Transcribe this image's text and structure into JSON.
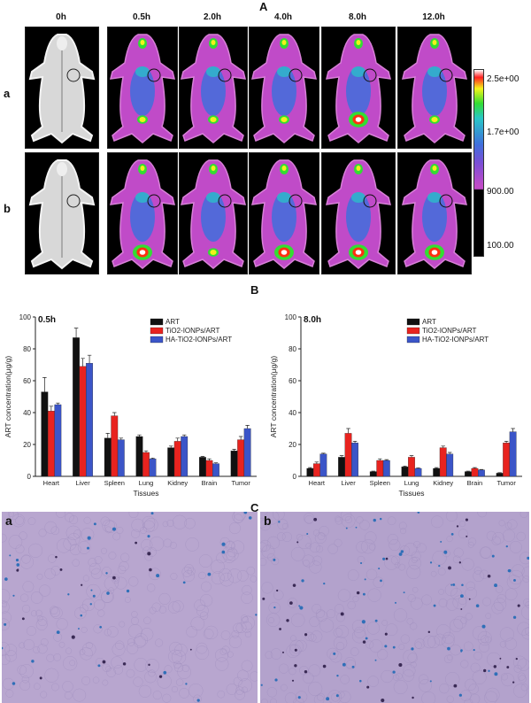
{
  "panelA": {
    "letter": "A",
    "timepoints": [
      "0h",
      "0.5h",
      "2.0h",
      "4.0h",
      "8.0h",
      "12.0h"
    ],
    "rows": [
      "a",
      "b"
    ],
    "colorbar": {
      "labels": [
        "2.5e+00",
        "1.7e+00",
        "900.00",
        "100.00"
      ]
    },
    "colors": {
      "low": "#c04bc8",
      "mid": "#3f6fdc",
      "high": "#f2f21a",
      "hot": "#ff3010"
    }
  },
  "panelB": {
    "letter": "B"
  },
  "panelC": {
    "letter": "C",
    "labels": [
      "a",
      "b"
    ]
  },
  "chart_data": [
    {
      "type": "bar",
      "title": "0.5h",
      "xlabel": "Tissues",
      "ylabel": "ART concentration(μg/g)",
      "ylim": [
        0,
        100
      ],
      "yticks": [
        0,
        20,
        40,
        60,
        80,
        100
      ],
      "legend": "top-right",
      "categories": [
        "Heart",
        "Liver",
        "Spleen",
        "Lung",
        "Kidney",
        "Brain",
        "Tumor"
      ],
      "series": [
        {
          "name": "ART",
          "color": "#111111",
          "values": [
            53,
            87,
            24,
            25,
            18,
            12,
            16
          ],
          "errors": [
            9,
            6,
            3,
            1,
            1,
            0.5,
            1
          ]
        },
        {
          "name": "TiO2-IONPs/ART",
          "color": "#e8231f",
          "values": [
            41,
            69,
            38,
            15,
            22,
            10,
            23
          ],
          "errors": [
            3,
            5,
            2,
            1,
            2,
            1,
            2
          ]
        },
        {
          "name": "HA-TiO2-IONPs/ART",
          "color": "#3b55c8",
          "values": [
            45,
            71,
            23,
            11,
            25,
            8,
            30
          ],
          "errors": [
            1,
            5,
            1,
            0.5,
            1,
            0.5,
            2
          ]
        }
      ]
    },
    {
      "type": "bar",
      "title": "8.0h",
      "xlabel": "Tissues",
      "ylabel": "ART concentration(μg/g)",
      "ylim": [
        0,
        100
      ],
      "yticks": [
        0,
        20,
        40,
        60,
        80,
        100
      ],
      "legend": "top-right",
      "categories": [
        "Heart",
        "Liver",
        "Spleen",
        "Lung",
        "Kidney",
        "Brain",
        "Tumor"
      ],
      "series": [
        {
          "name": "ART",
          "color": "#111111",
          "values": [
            5,
            12,
            3,
            6,
            5,
            3,
            2
          ],
          "errors": [
            0.5,
            1,
            0.3,
            0.5,
            0.5,
            0.3,
            0.3
          ]
        },
        {
          "name": "TiO2-IONPs/ART",
          "color": "#e8231f",
          "values": [
            8,
            27,
            10,
            12,
            18,
            5,
            21
          ],
          "errors": [
            1,
            3,
            1,
            1,
            1,
            0.5,
            1
          ]
        },
        {
          "name": "HA-TiO2-IONPs/ART",
          "color": "#3b55c8",
          "values": [
            14,
            21,
            10,
            5,
            14,
            4,
            28
          ],
          "errors": [
            0.5,
            1,
            0.5,
            0.3,
            1,
            0.3,
            2
          ]
        }
      ]
    }
  ]
}
